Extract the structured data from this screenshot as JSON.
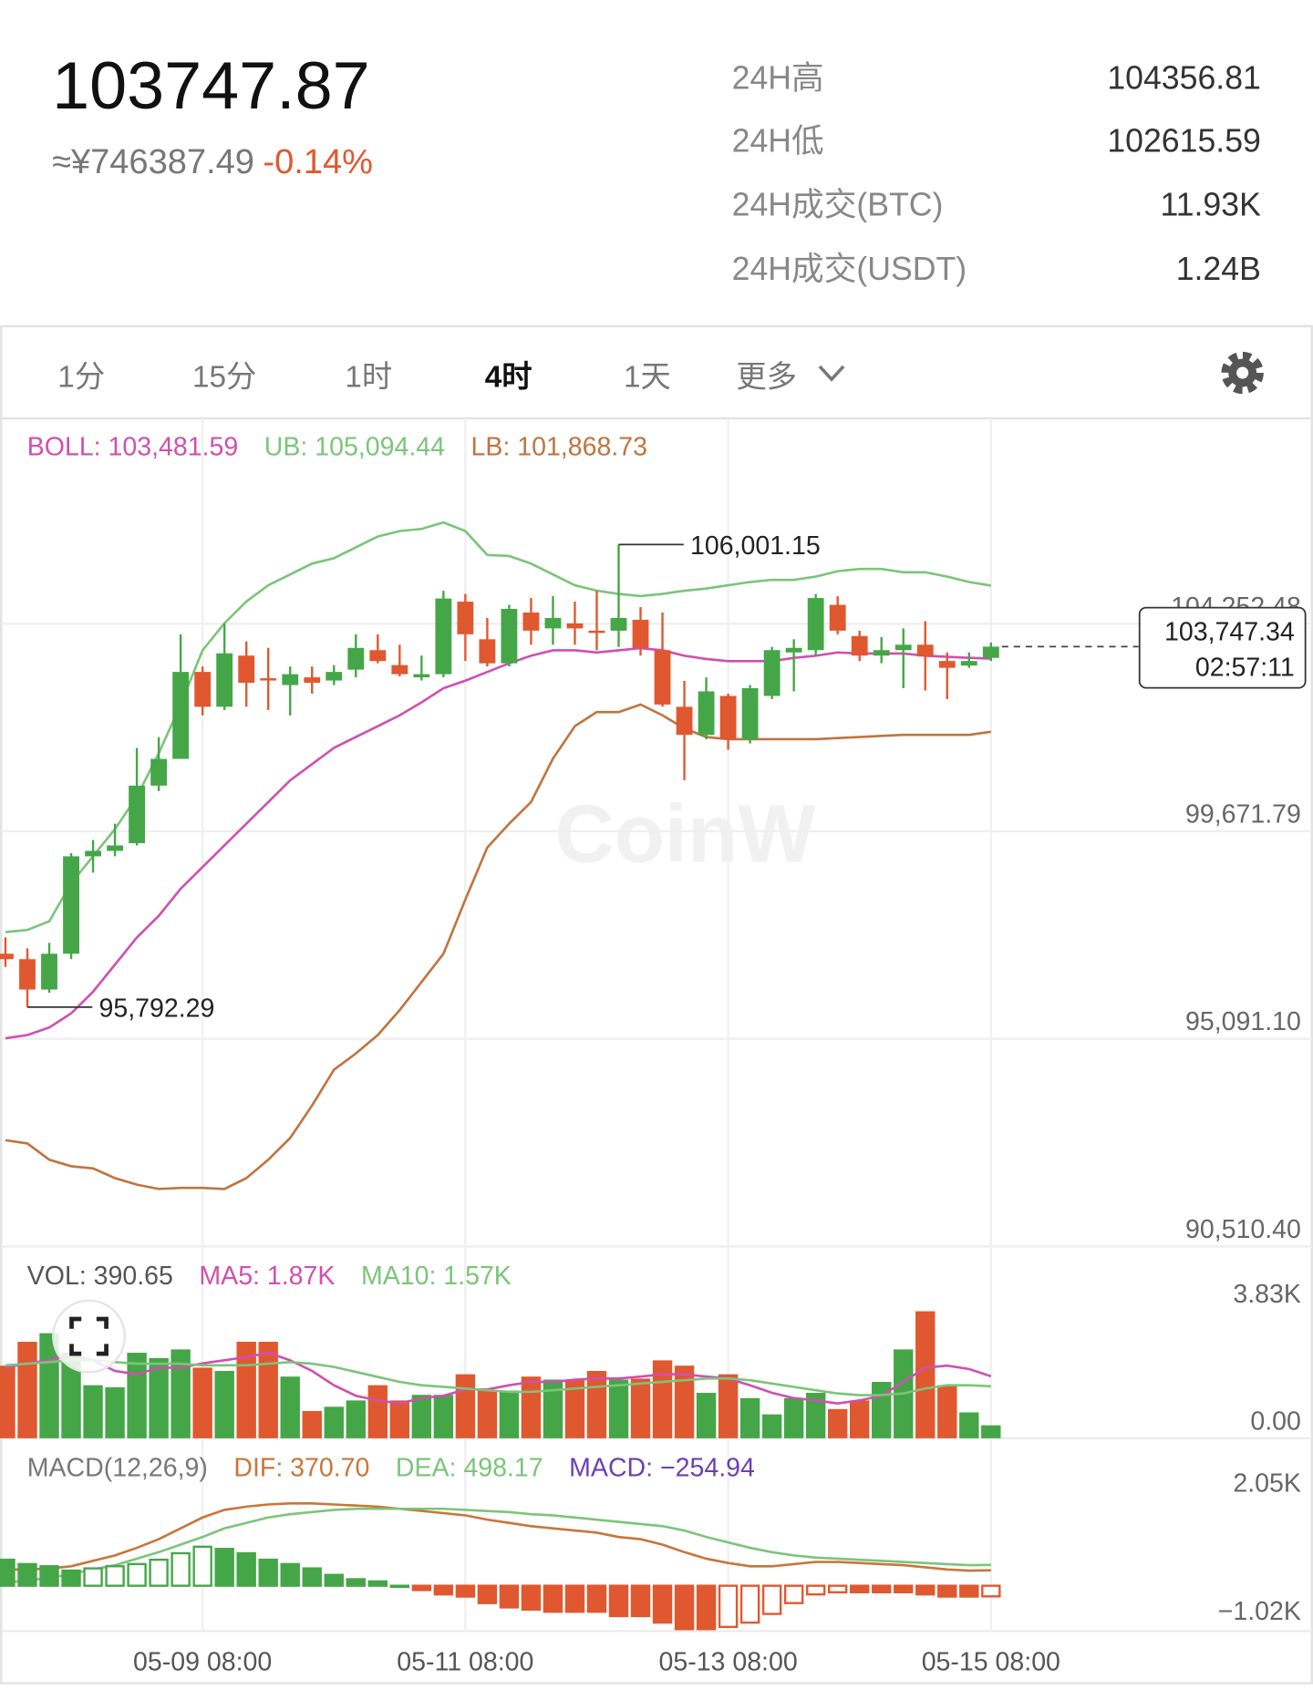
{
  "header": {
    "price": "103747.87",
    "cny": "≈¥746387.49",
    "change": "-0.14%"
  },
  "stats": [
    {
      "label": "24H高",
      "value": "104356.81"
    },
    {
      "label": "24H低",
      "value": "102615.59"
    },
    {
      "label": "24H成交(BTC)",
      "value": "11.93K"
    },
    {
      "label": "24H成交(USDT)",
      "value": "1.24B"
    }
  ],
  "tabs": [
    "1分",
    "15分",
    "1时",
    "4时",
    "1天",
    "更多"
  ],
  "selected_tab": "4时",
  "chart_data": [
    {
      "type": "candlestick",
      "watermark": "CoinW",
      "up_color": "#45a648",
      "down_color": "#e0582f",
      "categories": [
        null,
        null,
        null,
        null,
        null,
        null,
        null,
        null,
        null,
        "05-09 08:00",
        null,
        null,
        null,
        null,
        null,
        null,
        null,
        null,
        null,
        null,
        null,
        "05-11 08:00",
        null,
        null,
        null,
        null,
        null,
        null,
        null,
        null,
        null,
        null,
        null,
        "05-13 08:00",
        null,
        null,
        null,
        null,
        null,
        null,
        null,
        null,
        null,
        null,
        null,
        "05-15 08:00"
      ],
      "open": [
        96970,
        96850,
        96180,
        96970,
        99120,
        99240,
        99410,
        100680,
        101270,
        103190,
        102420,
        103550,
        103050,
        102900,
        103070,
        103000,
        103240,
        103670,
        103340,
        103070,
        103140,
        104740,
        103910,
        103380,
        104500,
        104150,
        104260,
        104100,
        104100,
        104340,
        103670,
        102420,
        101800,
        102660,
        101700,
        102660,
        103620,
        103670,
        104670,
        103980,
        103550,
        103670,
        103790,
        103430,
        103330,
        103500
      ],
      "high": [
        97330,
        97090,
        97210,
        99190,
        99480,
        99840,
        101510,
        101750,
        104020,
        103310,
        104260,
        103860,
        103720,
        103310,
        103310,
        103340,
        104020,
        104020,
        103790,
        103550,
        104980,
        104910,
        104380,
        104670,
        104820,
        104860,
        104740,
        104980,
        106001.15,
        104620,
        104500,
        102990,
        103070,
        102710,
        102900,
        103740,
        103910,
        104910,
        104860,
        104100,
        103960,
        104150,
        104310,
        103620,
        103620,
        103840
      ],
      "low": [
        96680,
        95792.29,
        96110,
        96850,
        98760,
        99120,
        99360,
        100560,
        101270,
        102230,
        102350,
        102420,
        102350,
        102230,
        102710,
        102900,
        103070,
        103380,
        103090,
        103000,
        103070,
        103430,
        103310,
        103310,
        103790,
        103790,
        103790,
        103670,
        103740,
        103550,
        102420,
        100800,
        101700,
        101470,
        101610,
        102590,
        102760,
        103550,
        104020,
        103430,
        103380,
        102830,
        102780,
        102590,
        103280,
        103430
      ],
      "close": [
        96850,
        96180,
        96970,
        99120,
        99240,
        99360,
        100680,
        101270,
        103190,
        102420,
        103600,
        102950,
        103000,
        103140,
        102950,
        103190,
        103720,
        103430,
        103140,
        103140,
        104810,
        104020,
        103380,
        104580,
        104100,
        104380,
        104150,
        104050,
        104380,
        103720,
        102470,
        101800,
        102760,
        101700,
        102830,
        103670,
        103720,
        104820,
        104100,
        103550,
        103670,
        103790,
        103530,
        103280,
        103430,
        103747.34
      ],
      "series": [
        {
          "legend": "BOLL: 103,481.59",
          "color": "#d04fb0",
          "values": [
            95103,
            95174,
            95342,
            95653,
            96131,
            96729,
            97327,
            97806,
            98404,
            98882,
            99360,
            99839,
            100317,
            100796,
            101154,
            101513,
            101752,
            101992,
            102231,
            102518,
            102829,
            102996,
            103188,
            103379,
            103546,
            103666,
            103666,
            103618,
            103666,
            103714,
            103666,
            103546,
            103475,
            103427,
            103427,
            103427,
            103499,
            103546,
            103618,
            103594,
            103594,
            103594,
            103546,
            103522,
            103499,
            103481.59
          ]
        },
        {
          "legend": "UB: 105,094.44",
          "color": "#7cc47a",
          "values": [
            97447,
            97495,
            97686,
            98523,
            99121,
            99719,
            100437,
            101394,
            102470,
            103666,
            104264,
            104742,
            105101,
            105340,
            105580,
            105699,
            105938,
            106178,
            106297,
            106345,
            106489,
            106297,
            105771,
            105747,
            105580,
            105340,
            105101,
            104982,
            104910,
            104862,
            104910,
            104982,
            105030,
            105101,
            105173,
            105221,
            105221,
            105293,
            105412,
            105460,
            105460,
            105388,
            105388,
            105293,
            105173,
            105094.44
          ]
        },
        {
          "legend": "LB: 101,868.73",
          "color": "#bf7440",
          "values": [
            92854,
            92782,
            92424,
            92280,
            92232,
            92017,
            91873,
            91778,
            91802,
            91802,
            91778,
            92017,
            92424,
            92902,
            93620,
            94409,
            94768,
            95174,
            95725,
            96346,
            96968,
            98164,
            99313,
            99839,
            100317,
            101274,
            101992,
            102303,
            102303,
            102470,
            102231,
            101944,
            101752,
            101705,
            101705,
            101705,
            101705,
            101705,
            101728,
            101752,
            101776,
            101800,
            101800,
            101800,
            101800,
            101868.73
          ]
        }
      ],
      "annotations": [
        {
          "value": 106001.15,
          "label": "106,001.15"
        },
        {
          "value": 95792.29,
          "label": "95,792.29"
        }
      ],
      "last_price": {
        "value": 103747.34,
        "label": "103,747.34"
      },
      "countdown": "02:57:11",
      "ylim": [
        90510.4,
        108690
      ],
      "yticks": [
        {
          "value": 90510.4,
          "label": "90,510.40"
        },
        {
          "value": 95091.1,
          "label": "95,091.10"
        },
        {
          "value": 99671.79,
          "label": "99,671.79"
        },
        {
          "value": 104252.48,
          "label": "104,252.48"
        }
      ],
      "grid": true
    },
    {
      "type": "volume",
      "legend": "VOL: 390.65",
      "legend_color": "#555555",
      "values": [
        2190,
        2910,
        3170,
        2580,
        1600,
        1540,
        2580,
        2420,
        2680,
        2130,
        2030,
        2910,
        2910,
        1860,
        820,
        950,
        1140,
        1600,
        1140,
        1310,
        1310,
        1930,
        1440,
        1440,
        1860,
        1770,
        1770,
        2030,
        1770,
        1800,
        2350,
        2190,
        1370,
        1930,
        1210,
        720,
        1210,
        1370,
        880,
        1140,
        1700,
        2680,
        3830,
        1600,
        780,
        390.65
      ],
      "series": [
        {
          "legend": "MA5: 1.87K",
          "color": "#d04fb0",
          "values": [
            2130,
            2260,
            2350,
            2520,
            2350,
            2030,
            1930,
            2130,
            2130,
            2260,
            2350,
            2450,
            2580,
            2350,
            2030,
            1600,
            1280,
            1140,
            1050,
            1210,
            1280,
            1470,
            1470,
            1600,
            1700,
            1700,
            1770,
            1800,
            1800,
            1860,
            1930,
            1930,
            1860,
            1800,
            1600,
            1370,
            1210,
            1140,
            1050,
            1140,
            1280,
            1700,
            2130,
            2190,
            2090,
            1870
          ]
        },
        {
          "legend": "MA10: 1.57K",
          "color": "#7cc47a",
          "values": [
            2200,
            2250,
            2300,
            2350,
            2350,
            2300,
            2250,
            2250,
            2250,
            2200,
            2200,
            2200,
            2250,
            2300,
            2250,
            2150,
            2000,
            1850,
            1700,
            1600,
            1550,
            1500,
            1450,
            1400,
            1400,
            1450,
            1500,
            1550,
            1600,
            1650,
            1700,
            1750,
            1800,
            1800,
            1750,
            1650,
            1550,
            1450,
            1350,
            1300,
            1300,
            1350,
            1500,
            1600,
            1600,
            1570
          ]
        }
      ],
      "ylim": [
        0,
        5460
      ],
      "yticks": [
        {
          "value": 3830,
          "label": "3.83K"
        },
        {
          "value": 0,
          "label": "0.00"
        }
      ]
    },
    {
      "type": "macd",
      "legend": "MACD(12,26,9)",
      "legend_color": "#777777",
      "series": [
        {
          "legend": "DIF: 370.70",
          "color": "#c8763a",
          "values": [
            390,
            390,
            416,
            468,
            598,
            728,
            910,
            1118,
            1378,
            1638,
            1820,
            1898,
            1950,
            1976,
            1976,
            1950,
            1924,
            1898,
            1846,
            1794,
            1742,
            1690,
            1586,
            1508,
            1430,
            1378,
            1326,
            1274,
            1170,
            1118,
            988,
            806,
            650,
            546,
            468,
            468,
            520,
            572,
            572,
            546,
            520,
            494,
            442,
            390,
            364,
            370.7
          ]
        },
        {
          "legend": "DEA: 498.17",
          "color": "#7cc47a",
          "values": [
            78,
            130,
            182,
            286,
            390,
            494,
            650,
            806,
            988,
            1170,
            1378,
            1508,
            1638,
            1716,
            1768,
            1820,
            1846,
            1846,
            1846,
            1846,
            1846,
            1820,
            1794,
            1768,
            1716,
            1690,
            1638,
            1586,
            1534,
            1482,
            1430,
            1326,
            1170,
            1040,
            910,
            806,
            728,
            676,
            650,
            624,
            598,
            572,
            546,
            520,
            494,
            498.17
          ]
        },
        {
          "legend": "MACD: −254.94",
          "color": "#6b3fb5",
          "style": "histogram",
          "values": [
            624,
            520,
            468,
            364,
            416,
            468,
            520,
            624,
            780,
            936,
            884,
            780,
            624,
            520,
            416,
            260,
            156,
            104,
            0,
            -104,
            -208,
            -260,
            -416,
            -520,
            -572,
            -624,
            -624,
            -624,
            -728,
            -728,
            -884,
            -1040,
            -1040,
            -988,
            -884,
            -676,
            -416,
            -208,
            -156,
            -156,
            -156,
            -156,
            -208,
            -260,
            -260,
            -254.94
          ]
        }
      ],
      "ylim": [
        -1090,
        3200
      ],
      "yticks": [
        {
          "value": 2050,
          "label": "2.05K"
        },
        {
          "value": -1020,
          "label": "−1.02K"
        }
      ]
    }
  ]
}
